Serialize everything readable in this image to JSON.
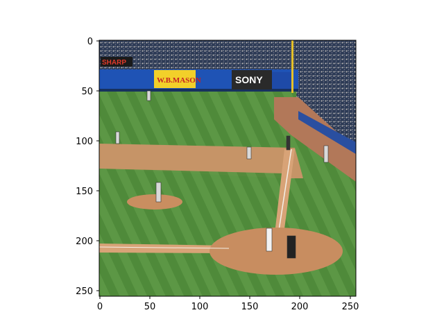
{
  "figure": {
    "x_ticks": [
      "0",
      "50",
      "100",
      "150",
      "200",
      "250"
    ],
    "y_ticks": [
      "0",
      "50",
      "100",
      "150",
      "200",
      "250"
    ]
  },
  "photo": {
    "subject": "baseball-game",
    "signs": {
      "sharp": "SHARP",
      "mason_line1": "W.B.MASON",
      "sony": "SONY"
    }
  }
}
